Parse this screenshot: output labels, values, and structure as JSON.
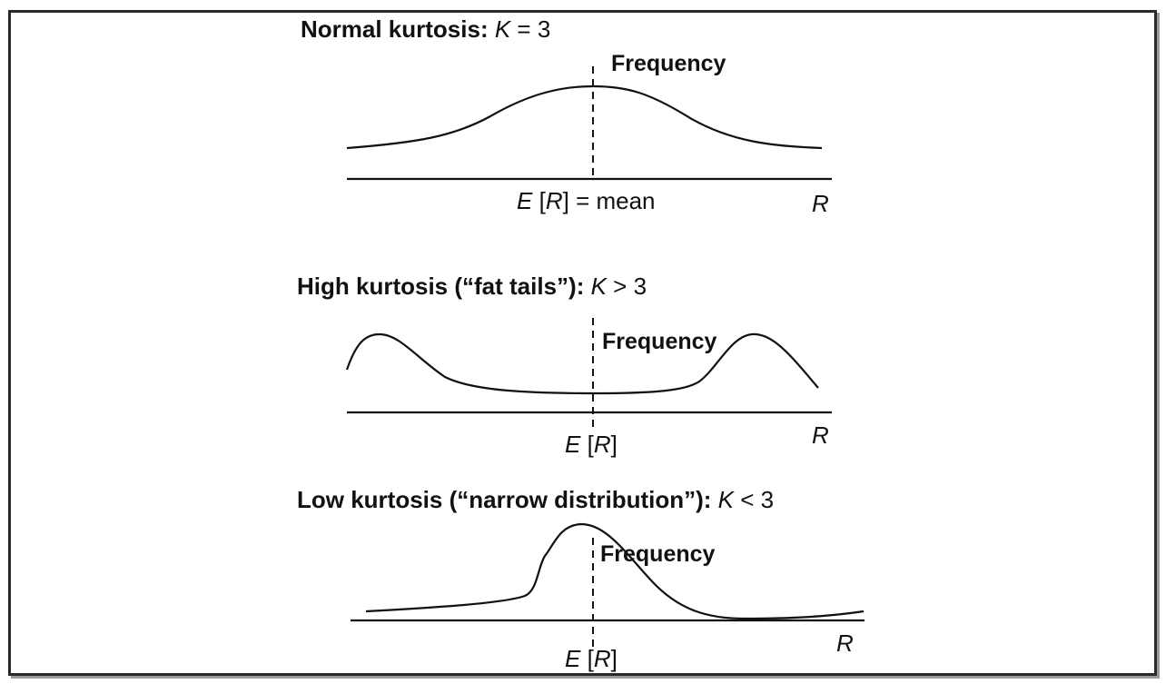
{
  "panels": [
    {
      "title_bold": "Normal kurtosis:",
      "title_var": "K",
      "title_rel": "= 3",
      "frequency_label": "Frequency",
      "mean_var": "E",
      "mean_open": "[",
      "mean_arg": "R",
      "mean_close": "]",
      "mean_suffix": "= mean",
      "axis_label": "R"
    },
    {
      "title_bold": "High kurtosis (“fat tails”):",
      "title_var": "K",
      "title_rel": "> 3",
      "frequency_label": "Frequency",
      "mean_var": "E",
      "mean_open": "[",
      "mean_arg": "R",
      "mean_close": "]",
      "mean_suffix": "",
      "axis_label": "R"
    },
    {
      "title_bold": "Low kurtosis (“narrow distribution”):",
      "title_var": "K",
      "title_rel": "< 3",
      "frequency_label": "Frequency",
      "mean_var": "E",
      "mean_open": "[",
      "mean_arg": "R",
      "mean_close": "]",
      "mean_suffix": "",
      "axis_label": "R"
    }
  ]
}
